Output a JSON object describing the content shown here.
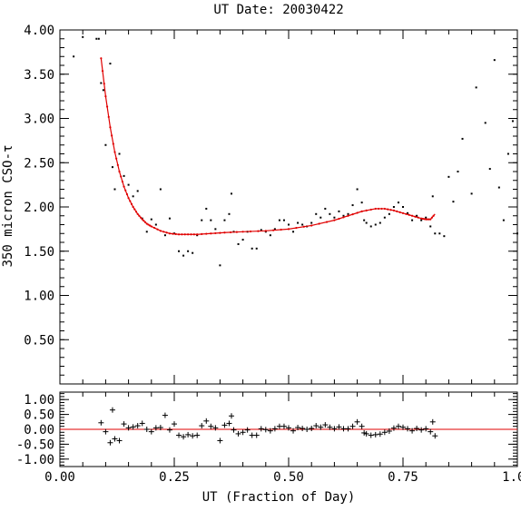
{
  "colors": {
    "fit": "#e00000",
    "points": "#000000",
    "background": "#ffffff"
  },
  "chart_data": [
    {
      "type": "scatter",
      "title": "UT Date: 20030422",
      "xlabel": "",
      "ylabel": "350 micron CSO-τ",
      "xlim": [
        0.0,
        1.0
      ],
      "ylim": [
        0.0,
        4.0
      ],
      "y_ticks_labeled": [
        "0.50",
        "1.00",
        "1.50",
        "2.00",
        "2.50",
        "3.00",
        "3.50",
        "4.00"
      ],
      "y_tick_values": [
        0.5,
        1.0,
        1.5,
        2.0,
        2.5,
        3.0,
        3.5,
        4.0
      ],
      "grid": false,
      "series": [
        {
          "values_xy": [
            [
              0.03,
              3.7
            ],
            [
              0.05,
              3.92
            ],
            [
              0.08,
              3.9
            ],
            [
              0.085,
              3.9
            ],
            [
              0.09,
              3.4
            ],
            [
              0.095,
              3.32
            ],
            [
              0.1,
              2.7
            ],
            [
              0.11,
              3.62
            ],
            [
              0.115,
              2.45
            ],
            [
              0.12,
              2.2
            ],
            [
              0.13,
              2.6
            ],
            [
              0.14,
              2.35
            ],
            [
              0.15,
              2.25
            ],
            [
              0.16,
              2.12
            ],
            [
              0.17,
              2.18
            ],
            [
              0.18,
              1.87
            ],
            [
              0.19,
              1.72
            ],
            [
              0.2,
              1.86
            ],
            [
              0.21,
              1.8
            ],
            [
              0.22,
              2.2
            ],
            [
              0.23,
              1.68
            ],
            [
              0.24,
              1.87
            ],
            [
              0.25,
              1.7
            ],
            [
              0.26,
              1.5
            ],
            [
              0.27,
              1.45
            ],
            [
              0.28,
              1.5
            ],
            [
              0.29,
              1.48
            ],
            [
              0.3,
              1.68
            ],
            [
              0.31,
              1.85
            ],
            [
              0.32,
              1.98
            ],
            [
              0.33,
              1.85
            ],
            [
              0.34,
              1.75
            ],
            [
              0.35,
              1.34
            ],
            [
              0.36,
              1.85
            ],
            [
              0.37,
              1.92
            ],
            [
              0.375,
              2.15
            ],
            [
              0.38,
              1.72
            ],
            [
              0.39,
              1.58
            ],
            [
              0.4,
              1.63
            ],
            [
              0.41,
              1.72
            ],
            [
              0.42,
              1.53
            ],
            [
              0.43,
              1.53
            ],
            [
              0.44,
              1.74
            ],
            [
              0.45,
              1.72
            ],
            [
              0.46,
              1.68
            ],
            [
              0.47,
              1.75
            ],
            [
              0.48,
              1.85
            ],
            [
              0.49,
              1.85
            ],
            [
              0.5,
              1.8
            ],
            [
              0.51,
              1.72
            ],
            [
              0.52,
              1.82
            ],
            [
              0.53,
              1.8
            ],
            [
              0.54,
              1.78
            ],
            [
              0.55,
              1.82
            ],
            [
              0.56,
              1.92
            ],
            [
              0.57,
              1.88
            ],
            [
              0.58,
              1.98
            ],
            [
              0.59,
              1.92
            ],
            [
              0.6,
              1.88
            ],
            [
              0.61,
              1.95
            ],
            [
              0.62,
              1.9
            ],
            [
              0.63,
              1.92
            ],
            [
              0.64,
              2.02
            ],
            [
              0.65,
              2.2
            ],
            [
              0.66,
              2.05
            ],
            [
              0.665,
              1.85
            ],
            [
              0.67,
              1.82
            ],
            [
              0.68,
              1.78
            ],
            [
              0.69,
              1.8
            ],
            [
              0.7,
              1.82
            ],
            [
              0.71,
              1.88
            ],
            [
              0.72,
              1.92
            ],
            [
              0.73,
              2.0
            ],
            [
              0.74,
              2.05
            ],
            [
              0.75,
              2.0
            ],
            [
              0.76,
              1.93
            ],
            [
              0.77,
              1.85
            ],
            [
              0.78,
              1.9
            ],
            [
              0.79,
              1.85
            ],
            [
              0.8,
              1.88
            ],
            [
              0.81,
              1.78
            ],
            [
              0.815,
              2.12
            ],
            [
              0.82,
              1.7
            ],
            [
              0.83,
              1.7
            ],
            [
              0.84,
              1.67
            ],
            [
              0.85,
              2.34
            ],
            [
              0.86,
              2.06
            ],
            [
              0.87,
              2.4
            ],
            [
              0.88,
              2.77
            ],
            [
              0.9,
              2.15
            ],
            [
              0.91,
              3.35
            ],
            [
              0.93,
              2.95
            ],
            [
              0.94,
              2.43
            ],
            [
              0.95,
              3.66
            ],
            [
              0.96,
              2.22
            ],
            [
              0.97,
              1.85
            ],
            [
              0.98,
              2.6
            ],
            [
              0.99,
              2.97
            ],
            [
              1.0,
              1.7
            ]
          ]
        },
        {
          "values_xy": [
            [
              0.09,
              3.68
            ],
            [
              0.1,
              3.25
            ],
            [
              0.11,
              2.9
            ],
            [
              0.12,
              2.62
            ],
            [
              0.13,
              2.4
            ],
            [
              0.14,
              2.23
            ],
            [
              0.15,
              2.1
            ],
            [
              0.16,
              2.0
            ],
            [
              0.17,
              1.92
            ],
            [
              0.18,
              1.86
            ],
            [
              0.19,
              1.81
            ],
            [
              0.2,
              1.78
            ],
            [
              0.22,
              1.73
            ],
            [
              0.24,
              1.7
            ],
            [
              0.26,
              1.69
            ],
            [
              0.28,
              1.69
            ],
            [
              0.3,
              1.69
            ],
            [
              0.33,
              1.7
            ],
            [
              0.36,
              1.71
            ],
            [
              0.4,
              1.72
            ],
            [
              0.45,
              1.73
            ],
            [
              0.5,
              1.75
            ],
            [
              0.55,
              1.79
            ],
            [
              0.6,
              1.85
            ],
            [
              0.63,
              1.9
            ],
            [
              0.66,
              1.95
            ],
            [
              0.69,
              1.98
            ],
            [
              0.71,
              1.98
            ],
            [
              0.73,
              1.96
            ],
            [
              0.75,
              1.93
            ],
            [
              0.77,
              1.9
            ],
            [
              0.79,
              1.87
            ],
            [
              0.8,
              1.86
            ],
            [
              0.81,
              1.86
            ],
            [
              0.82,
              1.92
            ]
          ]
        }
      ]
    },
    {
      "type": "scatter",
      "title": "",
      "xlabel": "UT (Fraction of Day)",
      "ylabel": "",
      "xlim": [
        0.0,
        1.0
      ],
      "ylim": [
        -1.25,
        1.25
      ],
      "x_ticks_labeled": [
        "0.00",
        "0.25",
        "0.50",
        "0.75",
        "1.00"
      ],
      "x_tick_values": [
        0.0,
        0.25,
        0.5,
        0.75,
        1.0
      ],
      "y_ticks_labeled": [
        "1.00",
        "0.50",
        "0.00",
        "-0.50",
        "-1.00"
      ],
      "y_tick_values": [
        1.0,
        0.5,
        0.0,
        -0.5,
        -1.0
      ],
      "grid": false,
      "series": [
        {
          "values_xy": [
            [
              0.09,
              0.22
            ],
            [
              0.1,
              -0.08
            ],
            [
              0.11,
              -0.45
            ],
            [
              0.115,
              0.65
            ],
            [
              0.12,
              -0.32
            ],
            [
              0.13,
              -0.38
            ],
            [
              0.14,
              0.18
            ],
            [
              0.15,
              0.05
            ],
            [
              0.16,
              0.08
            ],
            [
              0.17,
              0.12
            ],
            [
              0.18,
              0.2
            ],
            [
              0.19,
              0.0
            ],
            [
              0.2,
              -0.08
            ],
            [
              0.21,
              0.05
            ],
            [
              0.22,
              0.06
            ],
            [
              0.23,
              0.47
            ],
            [
              0.24,
              -0.02
            ],
            [
              0.25,
              0.18
            ],
            [
              0.26,
              -0.2
            ],
            [
              0.27,
              -0.25
            ],
            [
              0.28,
              -0.18
            ],
            [
              0.29,
              -0.22
            ],
            [
              0.3,
              -0.2
            ],
            [
              0.31,
              0.12
            ],
            [
              0.32,
              0.28
            ],
            [
              0.33,
              0.1
            ],
            [
              0.34,
              0.05
            ],
            [
              0.35,
              -0.38
            ],
            [
              0.36,
              0.14
            ],
            [
              0.37,
              0.2
            ],
            [
              0.375,
              0.45
            ],
            [
              0.38,
              -0.02
            ],
            [
              0.39,
              -0.15
            ],
            [
              0.4,
              -0.1
            ],
            [
              0.41,
              -0.02
            ],
            [
              0.42,
              -0.2
            ],
            [
              0.43,
              -0.2
            ],
            [
              0.44,
              0.02
            ],
            [
              0.45,
              -0.01
            ],
            [
              0.46,
              -0.05
            ],
            [
              0.47,
              0.02
            ],
            [
              0.48,
              0.1
            ],
            [
              0.49,
              0.1
            ],
            [
              0.5,
              0.05
            ],
            [
              0.51,
              -0.05
            ],
            [
              0.52,
              0.06
            ],
            [
              0.53,
              0.03
            ],
            [
              0.54,
              0.0
            ],
            [
              0.55,
              0.03
            ],
            [
              0.56,
              0.12
            ],
            [
              0.57,
              0.07
            ],
            [
              0.58,
              0.15
            ],
            [
              0.59,
              0.07
            ],
            [
              0.6,
              0.02
            ],
            [
              0.61,
              0.08
            ],
            [
              0.62,
              0.02
            ],
            [
              0.63,
              0.02
            ],
            [
              0.64,
              0.1
            ],
            [
              0.65,
              0.25
            ],
            [
              0.66,
              0.1
            ],
            [
              0.665,
              -0.12
            ],
            [
              0.67,
              -0.15
            ],
            [
              0.68,
              -0.2
            ],
            [
              0.69,
              -0.18
            ],
            [
              0.7,
              -0.16
            ],
            [
              0.71,
              -0.1
            ],
            [
              0.72,
              -0.06
            ],
            [
              0.73,
              0.04
            ],
            [
              0.74,
              0.1
            ],
            [
              0.75,
              0.07
            ],
            [
              0.76,
              0.02
            ],
            [
              0.77,
              -0.05
            ],
            [
              0.78,
              0.03
            ],
            [
              0.79,
              -0.02
            ],
            [
              0.8,
              0.02
            ],
            [
              0.81,
              -0.08
            ],
            [
              0.815,
              0.25
            ],
            [
              0.82,
              -0.22
            ]
          ]
        }
      ]
    }
  ]
}
